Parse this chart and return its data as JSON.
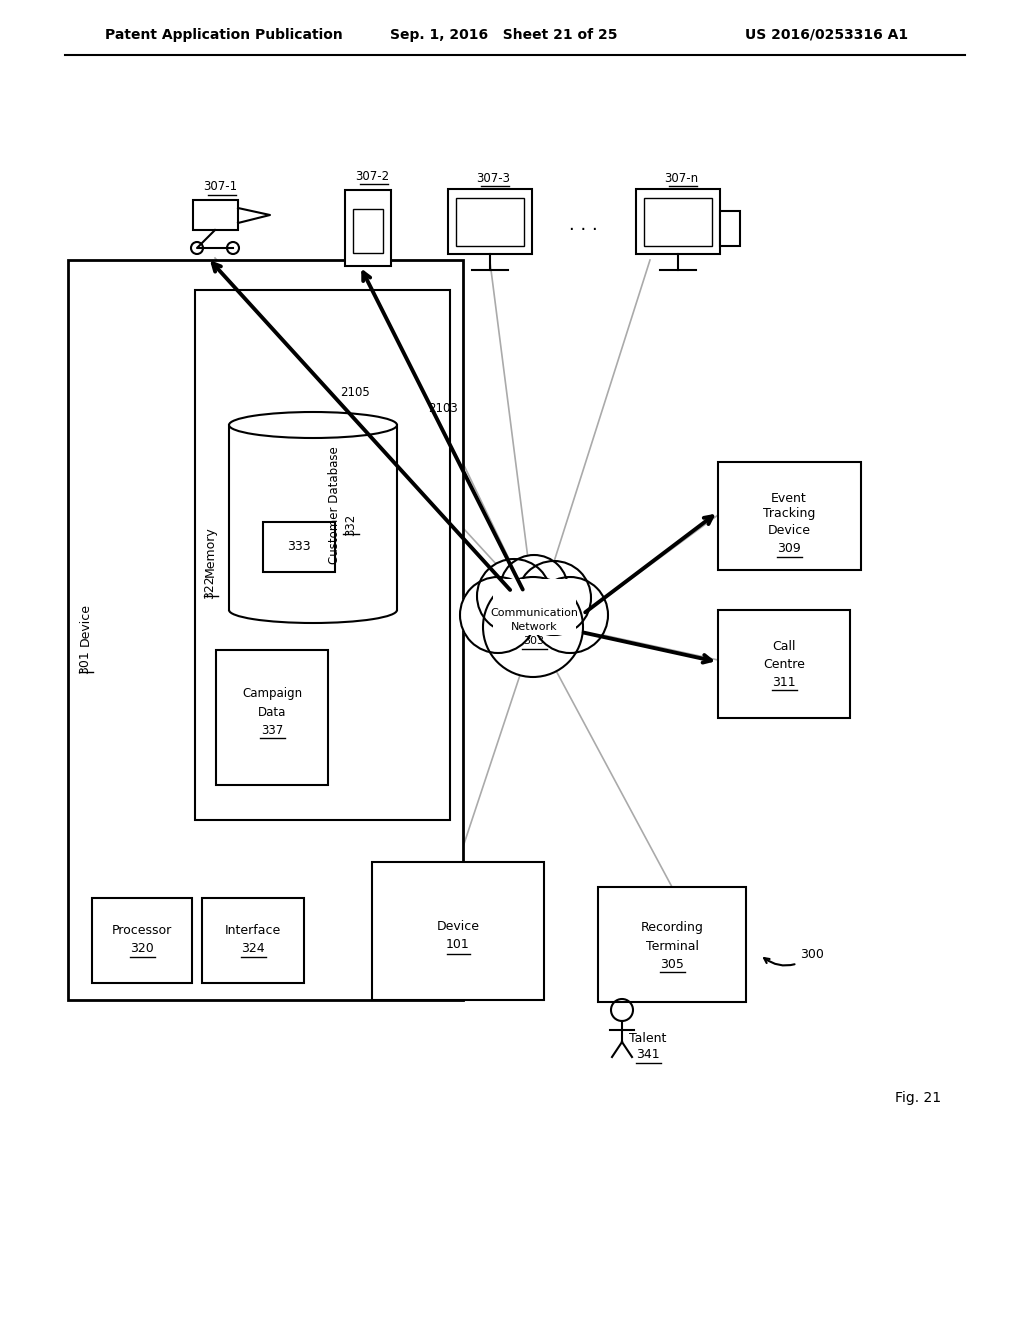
{
  "header_left": "Patent Application Publication",
  "header_mid": "Sep. 1, 2016   Sheet 21 of 25",
  "header_right": "US 2016/0253316 A1",
  "fig_label": "Fig. 21",
  "bg_color": "#ffffff",
  "line_color": "#000000",
  "gray_color": "#aaaaaa"
}
